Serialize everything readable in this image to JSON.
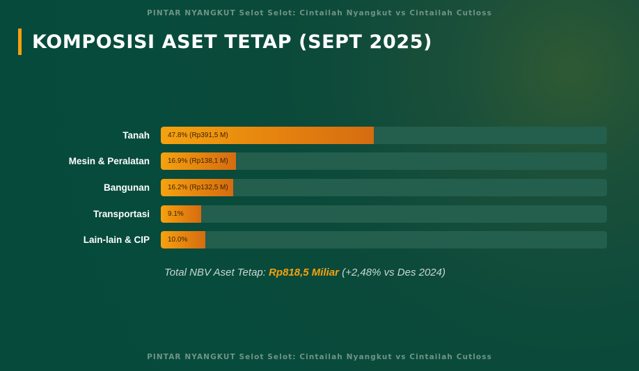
{
  "header": {
    "top_text": "PINTAR NYANGKUT Selot Selot: Cintailah Nyangkut vs Cintailah Cutloss",
    "title": "KOMPOSISI ASET TETAP (SEPT 2025)"
  },
  "footer": {
    "bottom_text": "PINTAR NYANGKUT Selot Selot: Cintailah Nyangkut vs Cintailah Cutloss"
  },
  "colors": {
    "accent": "#f5a10e",
    "background": "#054a3b",
    "track": "#245e4d"
  },
  "chart_data": {
    "type": "bar",
    "orientation": "horizontal",
    "title": "KOMPOSISI ASET TETAP (SEPT 2025)",
    "categories": [
      "Tanah",
      "Mesin & Peralatan",
      "Bangunan",
      "Transportasi",
      "Lain-lain & CIP"
    ],
    "values": [
      47.8,
      16.9,
      16.2,
      9.1,
      10.0
    ],
    "unit": "%",
    "xlim": [
      0,
      100
    ],
    "data_labels": [
      "47.8% (Rp391,5 M)",
      "16.9% (Rp138,1 M)",
      "16.2% (Rp132,5 M)",
      "9.1%",
      "10.0%"
    ],
    "xlabel": "",
    "ylabel": ""
  },
  "footnote": {
    "prefix": "Total NBV Aset Tetap: ",
    "highlight": "Rp818,5 Miliar",
    "suffix": " (+2,48% vs Des 2024)"
  }
}
